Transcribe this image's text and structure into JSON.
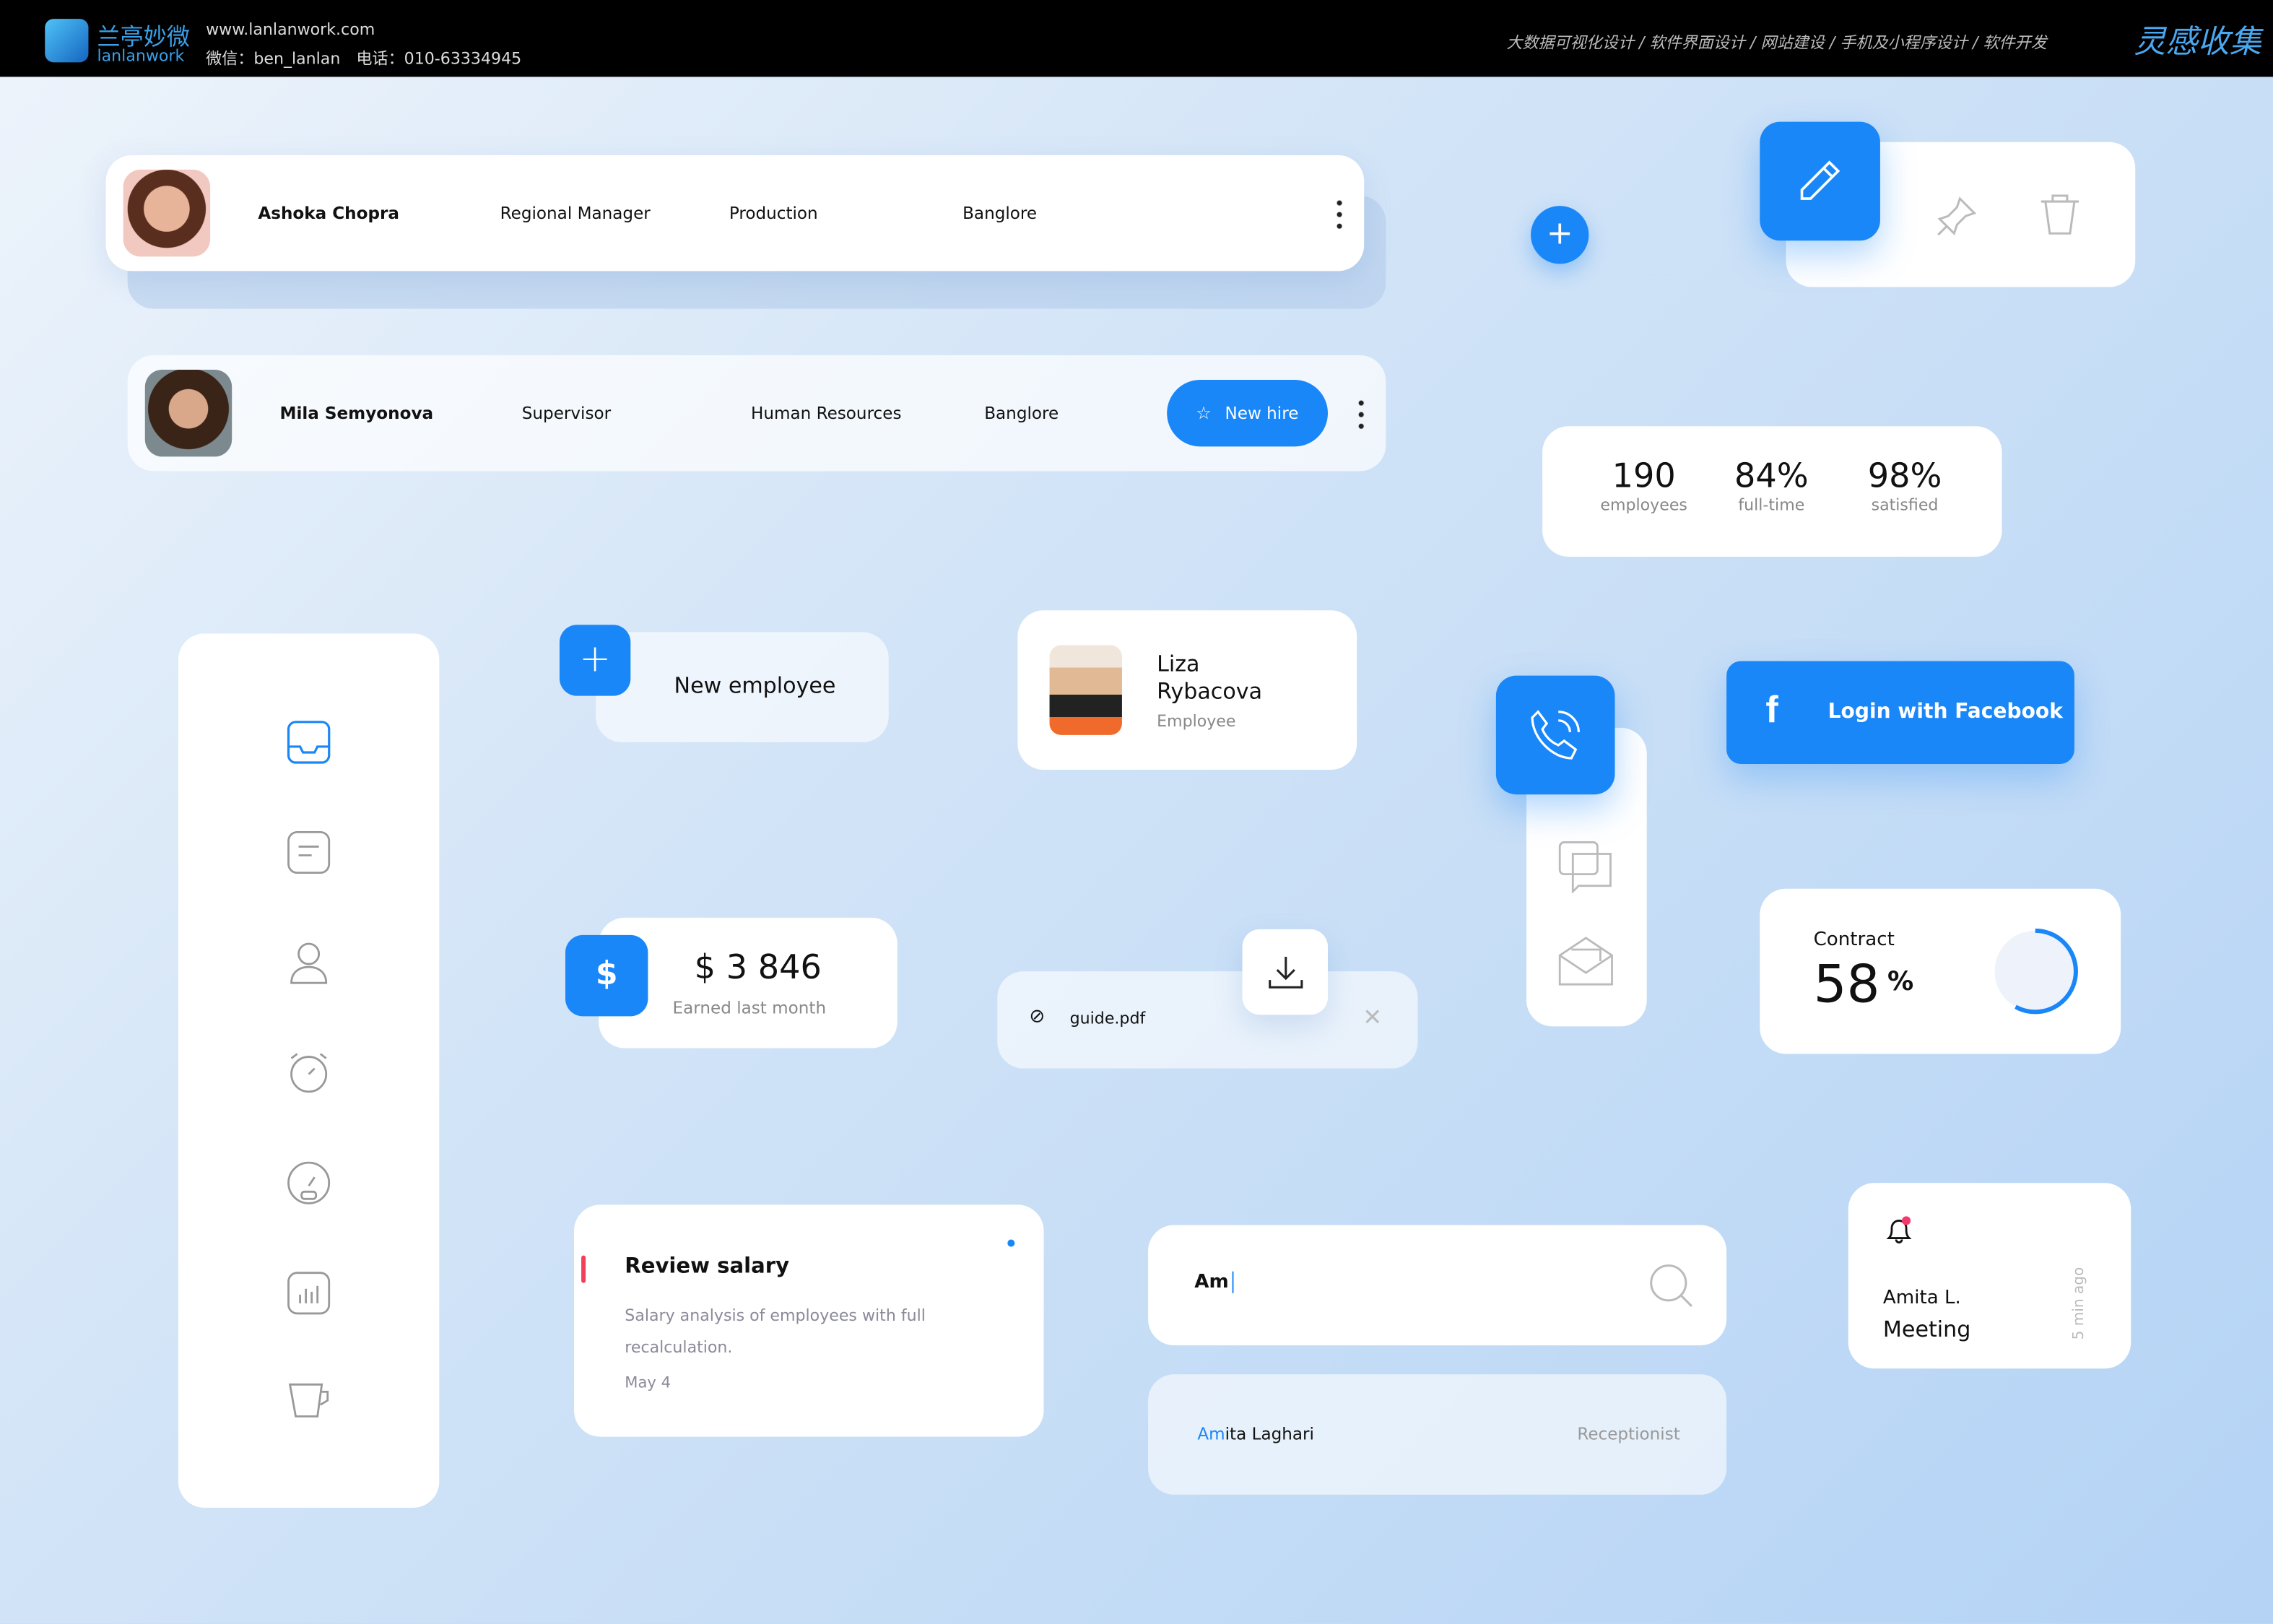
{
  "header": {
    "logo_cn": "兰亭妙微",
    "logo_en": "lanlanwork",
    "site": "www.lanlanwork.com",
    "contact": "微信：ben_lanlan　电话：010-63334945",
    "services": "大数据可视化设计 / 软件界面设计 / 网站建设 / 手机及小程序设计 / 软件开发",
    "brand": "灵感收集"
  },
  "employees": [
    {
      "name": "Ashoka Chopra",
      "role": "Regional Manager",
      "department": "Production",
      "location": "Banglore"
    },
    {
      "name": "Mila Semyonova",
      "role": "Supervisor",
      "department": "Human Resources",
      "location": "Banglore",
      "badge": "New hire"
    }
  ],
  "stats": [
    {
      "value": "190",
      "label": "employees"
    },
    {
      "value": "84%",
      "label": "full-time"
    },
    {
      "value": "98%",
      "label": "satisfied"
    }
  ],
  "new_employee": {
    "label": "New employee"
  },
  "profile": {
    "first": "Liza",
    "last": "Rybacova",
    "role": "Employee"
  },
  "facebook": {
    "label": "Login with Facebook"
  },
  "earnings": {
    "value": "$ 3 846",
    "label": "Earned last month"
  },
  "file": {
    "name": "guide.pdf"
  },
  "contract": {
    "label": "Contract",
    "value": "58",
    "unit": "%",
    "percent": 58
  },
  "task": {
    "title": "Review salary",
    "description": "Salary analysis of employees with full recalculation.",
    "date": "May 4"
  },
  "search": {
    "value": "Am",
    "result_match": "Am",
    "result_rest": "ita Laghari",
    "result_role": "Receptionist"
  },
  "notification": {
    "name": "Amita L.",
    "title": "Meeting",
    "time": "5 min ago"
  },
  "colors": {
    "accent": "#1a87f8",
    "alert": "#f43a6a",
    "task_marker": "#f0405a"
  }
}
